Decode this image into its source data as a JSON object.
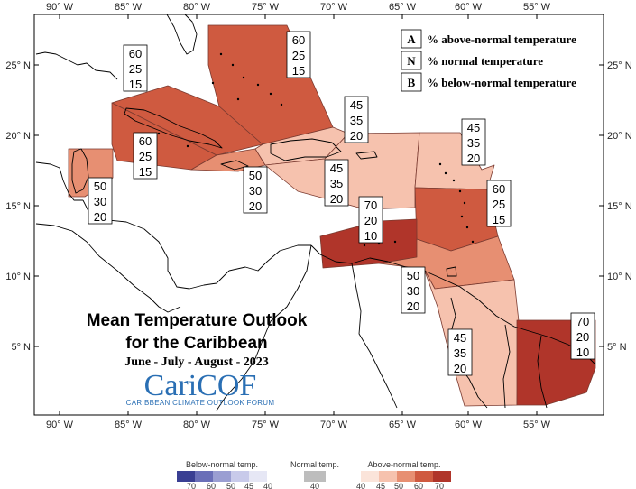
{
  "map": {
    "title_line1": "Mean Temperature Outlook",
    "title_line2": "for the Caribbean",
    "period": "June - July - August - 2023",
    "logo_text": "CariCOF",
    "logo_subtext": "CARIBBEAN CLIMATE OUTLOOK FORUM",
    "lon_ticks": [
      "90° W",
      "85° W",
      "80° W",
      "75° W",
      "70° W",
      "65° W",
      "60° W",
      "55° W"
    ],
    "lat_ticks": [
      "25° N",
      "20° N",
      "15° N",
      "10° N",
      "5° N"
    ],
    "legend": [
      {
        "key": "A",
        "text": "% above-normal temperature"
      },
      {
        "key": "N",
        "text": "% normal temperature"
      },
      {
        "key": "B",
        "text": "% below-normal temperature"
      }
    ],
    "colors": {
      "a70": "#b0352a",
      "a60": "#cf5a40",
      "a50": "#e78f72",
      "a45": "#f6c2ae",
      "a40": "#fbe4da"
    },
    "regions": [
      {
        "name": "bahamas",
        "color": "#cf5a40",
        "A": "60",
        "N": "25",
        "B": "15"
      },
      {
        "name": "cuba",
        "color": "#cf5a40",
        "A": "60",
        "N": "25",
        "B": "15"
      },
      {
        "name": "cuba-south",
        "color": "#cf5a40",
        "A": "60",
        "N": "25",
        "B": "15"
      },
      {
        "name": "belize",
        "color": "#e78f72",
        "A": "50",
        "N": "30",
        "B": "20"
      },
      {
        "name": "jamaica",
        "color": "#e78f72",
        "A": "50",
        "N": "30",
        "B": "20"
      },
      {
        "name": "hispaniola-north",
        "color": "#f6c2ae",
        "A": "45",
        "N": "35",
        "B": "20"
      },
      {
        "name": "hispaniola",
        "color": "#f6c2ae",
        "A": "45",
        "N": "35",
        "B": "20"
      },
      {
        "name": "leeward",
        "color": "#f6c2ae",
        "A": "45",
        "N": "35",
        "B": "20"
      },
      {
        "name": "windward",
        "color": "#cf5a40",
        "A": "60",
        "N": "25",
        "B": "15"
      },
      {
        "name": "abc-islands",
        "color": "#b0352a",
        "A": "70",
        "N": "20",
        "B": "10"
      },
      {
        "name": "trinidad",
        "color": "#e78f72",
        "A": "50",
        "N": "30",
        "B": "20"
      },
      {
        "name": "guyana",
        "color": "#f6c2ae",
        "A": "45",
        "N": "35",
        "B": "20"
      },
      {
        "name": "suriname-guiana",
        "color": "#b0352a",
        "A": "70",
        "N": "20",
        "B": "10"
      }
    ]
  },
  "colorbar": {
    "below_title": "Below-normal temp.",
    "normal_title": "Normal temp.",
    "above_title": "Above-normal temp.",
    "below_colors": [
      "#3a3f93",
      "#6a6fb8",
      "#9a9ed2",
      "#c8caea",
      "#e6e7f5"
    ],
    "below_ticks": [
      "70",
      "60",
      "50",
      "45",
      "40"
    ],
    "normal_color": "#bdbdbd",
    "normal_ticks": [
      "40"
    ],
    "above_colors": [
      "#fbe4da",
      "#f6c2ae",
      "#e78f72",
      "#cf5a40",
      "#b0352a"
    ],
    "above_ticks": [
      "40",
      "45",
      "50",
      "60",
      "70"
    ]
  }
}
